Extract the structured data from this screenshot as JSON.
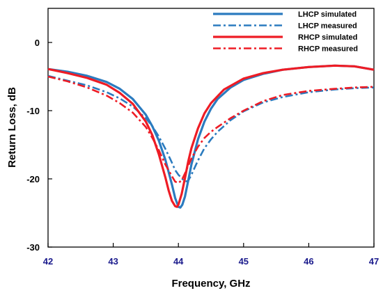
{
  "chart_data": {
    "type": "line",
    "xlabel": "Frequency, GHz",
    "ylabel": "Return Loss, dB",
    "xlim": [
      42,
      47
    ],
    "ylim": [
      -30,
      5
    ],
    "x_ticks": [
      42,
      43,
      44,
      45,
      46,
      47
    ],
    "y_ticks": [
      0,
      -10,
      -20,
      -30
    ],
    "grid": false,
    "legend_position": "top-right",
    "tick_label_color": "#1a1a8c",
    "series": [
      {
        "name": "LHCP simulated",
        "color": "#2b7bbf",
        "style": "solid",
        "x": [
          42.0,
          42.3,
          42.6,
          42.9,
          43.1,
          43.3,
          43.5,
          43.6,
          43.7,
          43.8,
          43.9,
          43.95,
          44.0,
          44.03,
          44.06,
          44.1,
          44.15,
          44.2,
          44.3,
          44.4,
          44.5,
          44.6,
          44.8,
          45.0,
          45.3,
          45.6,
          46.0,
          46.4,
          46.7,
          47.0
        ],
        "y": [
          -3.9,
          -4.3,
          -4.9,
          -5.8,
          -6.8,
          -8.3,
          -10.6,
          -12.3,
          -14.4,
          -17.2,
          -20.8,
          -22.8,
          -24.1,
          -24.2,
          -23.8,
          -22.6,
          -20.3,
          -17.9,
          -14.2,
          -11.6,
          -9.7,
          -8.3,
          -6.6,
          -5.5,
          -4.6,
          -4.0,
          -3.6,
          -3.4,
          -3.5,
          -4.0
        ]
      },
      {
        "name": "LHCP measured",
        "color": "#2b7bbf",
        "style": "dashdot",
        "x": [
          42.0,
          42.3,
          42.6,
          42.9,
          43.1,
          43.3,
          43.5,
          43.6,
          43.7,
          43.8,
          43.9,
          43.95,
          44.0,
          44.05,
          44.1,
          44.15,
          44.2,
          44.3,
          44.4,
          44.5,
          44.6,
          44.8,
          45.0,
          45.3,
          45.6,
          46.0,
          46.4,
          46.7,
          47.0
        ],
        "y": [
          -4.9,
          -5.6,
          -6.3,
          -7.3,
          -8.2,
          -9.4,
          -11.1,
          -12.3,
          -13.8,
          -15.6,
          -17.6,
          -18.7,
          -19.4,
          -19.9,
          -20.4,
          -20.3,
          -19.4,
          -17.3,
          -15.5,
          -14.2,
          -13.1,
          -11.4,
          -10.1,
          -8.8,
          -8.0,
          -7.3,
          -6.9,
          -6.7,
          -6.6
        ]
      },
      {
        "name": "RHCP simulated",
        "color": "#ee1c25",
        "style": "solid",
        "x": [
          42.0,
          42.3,
          42.6,
          42.9,
          43.1,
          43.3,
          43.5,
          43.6,
          43.7,
          43.8,
          43.85,
          43.9,
          43.95,
          43.98,
          44.0,
          44.05,
          44.1,
          44.15,
          44.2,
          44.3,
          44.4,
          44.5,
          44.7,
          45.0,
          45.3,
          45.6,
          46.0,
          46.4,
          46.7,
          47.0
        ],
        "y": [
          -3.9,
          -4.5,
          -5.2,
          -6.2,
          -7.4,
          -9.0,
          -11.6,
          -13.6,
          -16.4,
          -19.8,
          -21.7,
          -23.2,
          -24.0,
          -24.1,
          -23.8,
          -22.2,
          -19.9,
          -17.5,
          -15.5,
          -12.6,
          -10.4,
          -8.9,
          -6.9,
          -5.3,
          -4.5,
          -4.0,
          -3.6,
          -3.4,
          -3.5,
          -4.0
        ]
      },
      {
        "name": "RHCP measured",
        "color": "#ee1c25",
        "style": "dashdot",
        "x": [
          42.0,
          42.3,
          42.6,
          42.9,
          43.1,
          43.3,
          43.5,
          43.6,
          43.7,
          43.8,
          43.9,
          43.95,
          44.0,
          44.05,
          44.1,
          44.2,
          44.3,
          44.4,
          44.5,
          44.6,
          44.8,
          45.0,
          45.3,
          45.6,
          46.0,
          46.4,
          46.7,
          47.0
        ],
        "y": [
          -5.0,
          -5.7,
          -6.6,
          -7.8,
          -8.9,
          -10.3,
          -12.4,
          -14.0,
          -15.8,
          -17.9,
          -19.6,
          -20.4,
          -20.6,
          -20.2,
          -19.2,
          -17.0,
          -15.3,
          -14.0,
          -13.1,
          -12.4,
          -11.1,
          -10.0,
          -8.6,
          -7.7,
          -7.1,
          -6.8,
          -6.6,
          -6.5
        ]
      }
    ]
  }
}
